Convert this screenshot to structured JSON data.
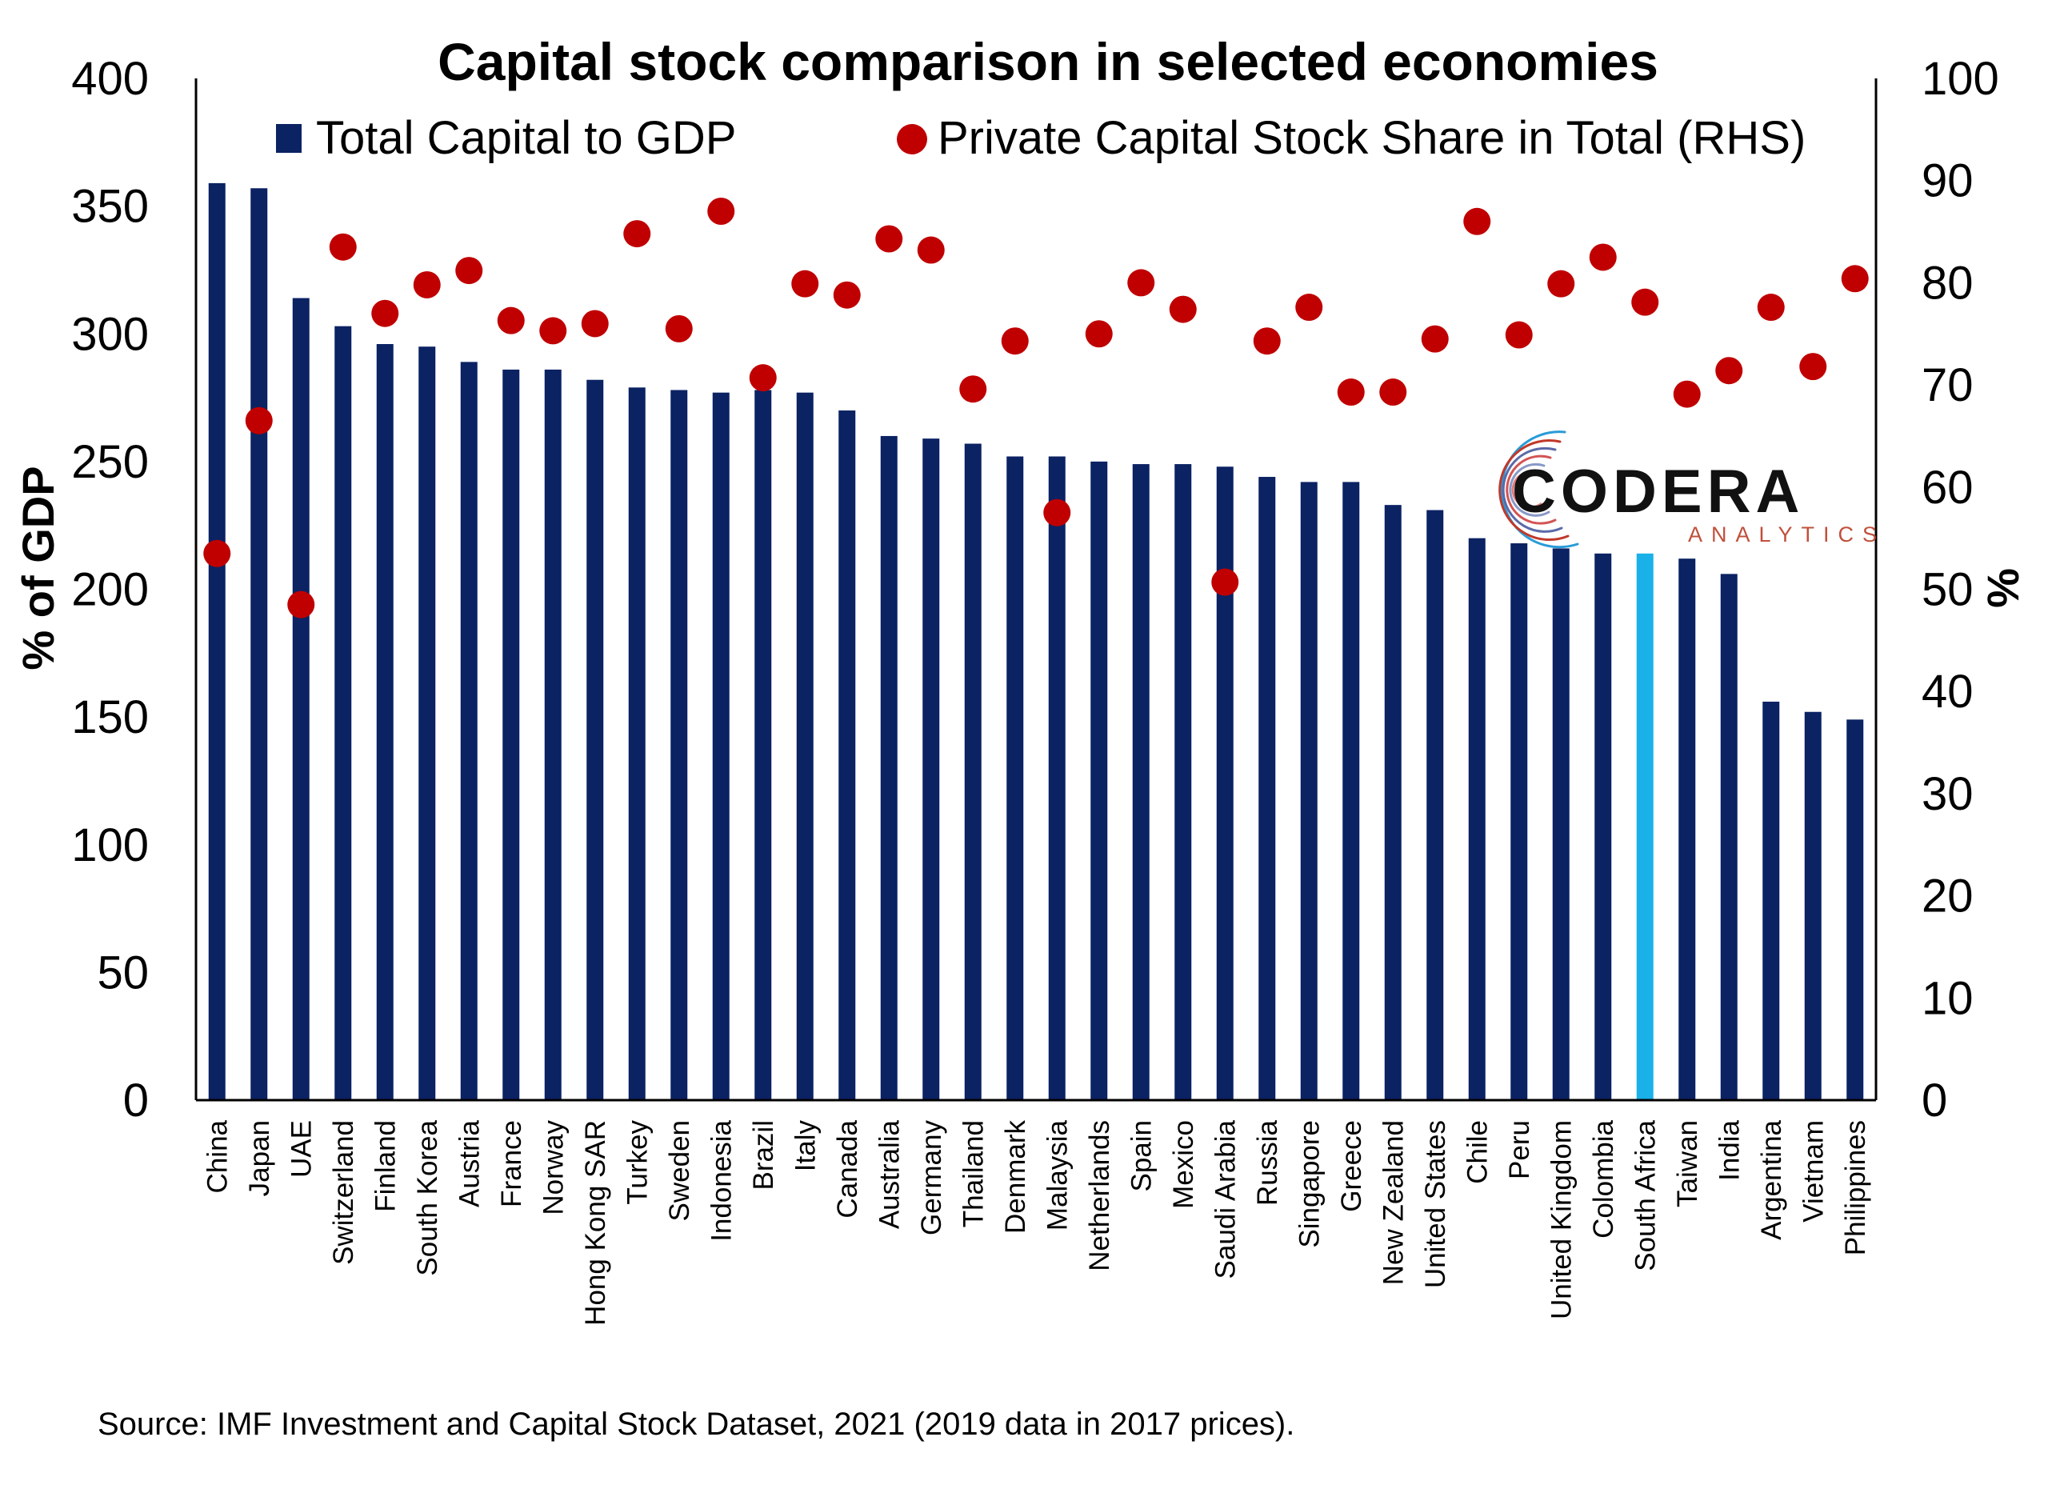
{
  "chart_data": {
    "type": "bar",
    "title": "Capital stock comparison in selected economies",
    "categories": [
      "China",
      "Japan",
      "UAE",
      "Switzerland",
      "Finland",
      "South Korea",
      "Austria",
      "France",
      "Norway",
      "Hong Kong SAR",
      "Turkey",
      "Sweden",
      "Indonesia",
      "Brazil",
      "Italy",
      "Canada",
      "Australia",
      "Germany",
      "Thailand",
      "Denmark",
      "Malaysia",
      "Netherlands",
      "Spain",
      "Mexico",
      "Saudi Arabia",
      "Russia",
      "Singapore",
      "Greece",
      "New Zealand",
      "United States",
      "Chile",
      "Peru",
      "United Kingdom",
      "Colombia",
      "South Africa",
      "Taiwan",
      "India",
      "Argentina",
      "Vietnam",
      "Philippines"
    ],
    "series": [
      {
        "name": "Total Capital to GDP",
        "type": "bar",
        "axis": "left",
        "color": "#0b2263",
        "highlight": {
          "category": "South Africa",
          "color": "#1ab0e8"
        },
        "values": [
          359,
          357,
          314,
          303,
          296,
          295,
          289,
          286,
          286,
          282,
          279,
          278,
          277,
          278,
          277,
          270,
          260,
          259,
          257,
          252,
          252,
          250,
          249,
          249,
          248,
          244,
          242,
          242,
          233,
          231,
          220,
          218,
          216,
          214,
          214,
          212,
          206,
          156,
          152,
          149
        ]
      },
      {
        "name": "Private Capital Stock Share in Total (RHS)",
        "type": "scatter",
        "axis": "right",
        "color": "#c00000",
        "values": [
          53.5,
          66.5,
          48.5,
          83.5,
          77,
          79.8,
          81.2,
          76.3,
          75.3,
          76,
          84.8,
          75.5,
          87,
          70.7,
          79.9,
          78.8,
          84.3,
          83.2,
          69.6,
          74.3,
          57.5,
          75,
          80,
          77.4,
          50.7,
          74.3,
          77.6,
          69.3,
          69.3,
          74.5,
          86,
          74.9,
          79.9,
          82.5,
          78.1,
          69.1,
          71.4,
          77.6,
          71.8,
          80.4
        ]
      }
    ],
    "ylabel": "% of GDP",
    "ylim": [
      0,
      400
    ],
    "yticks": [
      "0",
      "50",
      "100",
      "150",
      "200",
      "250",
      "300",
      "350",
      "400"
    ],
    "y2label": "%",
    "y2lim": [
      0,
      100
    ],
    "y2ticks": [
      "0",
      "10",
      "20",
      "30",
      "40",
      "50",
      "60",
      "70",
      "80",
      "90",
      "100"
    ],
    "grid": false,
    "legend": "top"
  },
  "legend": {
    "bars": "Total Capital to GDP",
    "dots": "Private Capital Stock Share in Total (RHS)"
  },
  "logo": {
    "main": "CODERA",
    "sub": "ANALYTICS"
  },
  "source": "Source: IMF Investment and Capital Stock Dataset, 2021 (2019 data in 2017 prices)."
}
